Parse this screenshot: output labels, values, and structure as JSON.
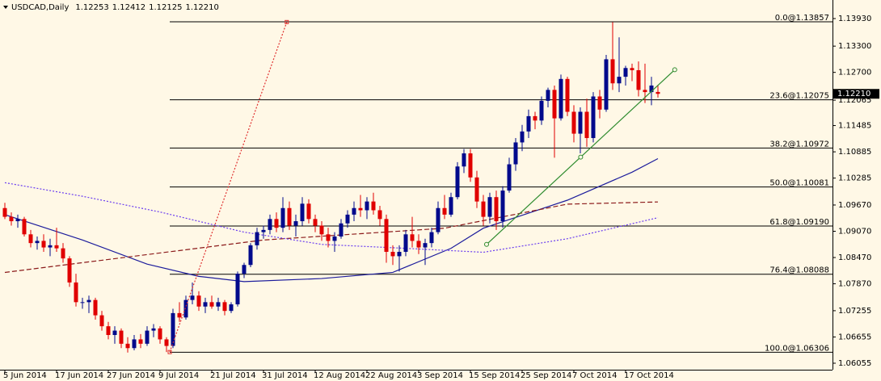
{
  "chart_data": {
    "type": "candlestick",
    "title": "USDCAD,Daily",
    "title_values": [
      {
        "value": 1.12253,
        "label": "1.12253"
      },
      {
        "value": 1.12412,
        "label": "1.12412"
      },
      {
        "value": 1.12125,
        "label": "1.12125"
      },
      {
        "value": 1.1221,
        "label": "1.12210"
      }
    ],
    "categories": [
      "5 Jun 2014",
      null,
      null,
      null,
      null,
      null,
      null,
      null,
      "17 Jun 2014",
      null,
      null,
      null,
      null,
      null,
      null,
      null,
      "27 Jun 2014",
      null,
      null,
      null,
      null,
      null,
      null,
      null,
      "9 Jul 2014",
      null,
      null,
      null,
      null,
      null,
      null,
      null,
      "21 Jul 2014",
      null,
      null,
      null,
      null,
      null,
      null,
      null,
      "31 Jul 2014",
      null,
      null,
      null,
      null,
      null,
      null,
      null,
      "12 Aug 2014",
      null,
      null,
      null,
      null,
      null,
      null,
      null,
      "22 Aug 2014",
      null,
      null,
      null,
      null,
      null,
      null,
      null,
      "3 Sep 2014",
      null,
      null,
      null,
      null,
      null,
      null,
      null,
      "15 Sep 2014",
      null,
      null,
      null,
      null,
      null,
      null,
      null,
      "25 Sep 2014",
      null,
      null,
      null,
      null,
      null,
      null,
      null,
      "7 Oct 2014",
      null,
      null,
      null,
      null,
      null,
      null,
      null,
      "17 Oct 2014",
      null,
      null,
      null,
      null,
      null
    ],
    "open": [
      1.096,
      1.094,
      1.093,
      1.0935,
      1.09,
      1.088,
      1.0885,
      1.087,
      1.0875,
      1.0868,
      1.0845,
      1.079,
      1.0745,
      1.0745,
      1.075,
      1.0715,
      1.069,
      1.067,
      1.068,
      1.065,
      1.064,
      1.066,
      1.065,
      1.068,
      1.0685,
      1.066,
      1.0645,
      1.072,
      1.071,
      1.075,
      1.076,
      1.0735,
      1.0745,
      1.0735,
      1.0745,
      1.0725,
      1.074,
      1.081,
      1.083,
      1.0875,
      1.0905,
      1.091,
      1.0935,
      1.0915,
      1.096,
      1.092,
      1.093,
      1.097,
      1.0935,
      1.092,
      1.09,
      1.0885,
      1.0895,
      1.0925,
      1.0945,
      1.096,
      1.0955,
      1.0975,
      1.0955,
      1.0935,
      1.086,
      1.085,
      1.086,
      1.09,
      1.0885,
      1.087,
      1.088,
      1.0905,
      1.096,
      1.0945,
      1.0985,
      1.1055,
      1.1085,
      1.103,
      1.0975,
      1.094,
      1.0985,
      1.093,
      1.1,
      1.106,
      1.111,
      1.1135,
      1.117,
      1.116,
      1.1205,
      1.123,
      1.1165,
      1.1255,
      1.118,
      1.113,
      1.118,
      1.112,
      1.1215,
      1.1185,
      1.13,
      1.1245,
      1.126,
      1.128,
      1.1275,
      1.123,
      1.1225,
      1.12253
    ],
    "high": [
      1.0972,
      1.095,
      1.0945,
      1.094,
      1.091,
      1.0895,
      1.09,
      1.089,
      1.0915,
      1.088,
      1.085,
      1.081,
      1.0755,
      1.076,
      1.0755,
      1.0725,
      1.07,
      1.069,
      1.0685,
      1.0665,
      1.067,
      1.0672,
      1.069,
      1.0695,
      1.069,
      1.0665,
      1.073,
      1.0745,
      1.076,
      1.079,
      1.077,
      1.0755,
      1.076,
      1.0755,
      1.075,
      1.0745,
      1.0815,
      1.0835,
      1.088,
      1.0915,
      1.092,
      1.0945,
      1.095,
      1.0985,
      1.0975,
      1.0945,
      1.0985,
      1.098,
      1.0945,
      1.093,
      1.0915,
      1.0905,
      1.0935,
      1.0955,
      1.0975,
      1.099,
      1.0985,
      1.0995,
      1.0965,
      1.0945,
      1.0875,
      1.0875,
      1.091,
      1.094,
      1.09,
      1.089,
      1.0915,
      1.0975,
      1.099,
      1.0995,
      1.1065,
      1.1095,
      1.1095,
      1.1045,
      1.099,
      1.0995,
      1.1,
      1.101,
      1.1075,
      1.112,
      1.115,
      1.1185,
      1.118,
      1.1215,
      1.1235,
      1.124,
      1.1265,
      1.126,
      1.1195,
      1.119,
      1.121,
      1.1225,
      1.123,
      1.131,
      1.1385,
      1.135,
      1.1285,
      1.129,
      1.1295,
      1.129,
      1.126,
      1.12412
    ],
    "low": [
      1.0935,
      1.092,
      1.0915,
      1.0895,
      1.087,
      1.0865,
      1.086,
      1.085,
      1.086,
      1.0835,
      1.078,
      1.0735,
      1.073,
      1.072,
      1.0705,
      1.068,
      1.066,
      1.065,
      1.064,
      1.063,
      1.0635,
      1.064,
      1.0645,
      1.0665,
      1.065,
      1.0631,
      1.064,
      1.07,
      1.0705,
      1.074,
      1.0725,
      1.072,
      1.073,
      1.0725,
      1.0715,
      1.072,
      1.0735,
      1.08,
      1.0825,
      1.0865,
      1.089,
      1.09,
      1.0905,
      1.0905,
      1.091,
      1.0895,
      1.092,
      1.0925,
      1.0905,
      1.0885,
      1.087,
      1.086,
      1.089,
      1.0915,
      1.093,
      1.094,
      1.0935,
      1.0945,
      1.092,
      1.0835,
      1.083,
      1.0815,
      1.085,
      1.087,
      1.0855,
      1.083,
      1.087,
      1.09,
      1.0935,
      1.094,
      1.098,
      1.104,
      1.102,
      1.096,
      1.092,
      1.0925,
      1.091,
      1.0915,
      1.0995,
      1.1045,
      1.109,
      1.112,
      1.114,
      1.115,
      1.119,
      1.1075,
      1.116,
      1.117,
      1.111,
      1.1085,
      1.11,
      1.111,
      1.1165,
      1.118,
      1.123,
      1.1225,
      1.124,
      1.125,
      1.1215,
      1.12,
      1.1195,
      1.12125
    ],
    "close": [
      1.094,
      1.093,
      1.0935,
      1.09,
      1.088,
      1.0885,
      1.087,
      1.0875,
      1.0868,
      1.0845,
      1.079,
      1.0745,
      1.0745,
      1.075,
      1.0715,
      1.069,
      1.067,
      1.068,
      1.065,
      1.064,
      1.066,
      1.065,
      1.068,
      1.0685,
      1.066,
      1.0645,
      1.072,
      1.071,
      1.075,
      1.076,
      1.0735,
      1.0745,
      1.0735,
      1.0745,
      1.0725,
      1.074,
      1.081,
      1.083,
      1.0875,
      1.0905,
      1.091,
      1.0935,
      1.0915,
      1.096,
      1.092,
      1.093,
      1.097,
      1.0935,
      1.092,
      1.09,
      1.0885,
      1.0895,
      1.0925,
      1.0945,
      1.096,
      1.0955,
      1.0975,
      1.0955,
      1.0935,
      1.086,
      1.085,
      1.086,
      1.09,
      1.0885,
      1.087,
      1.088,
      1.0905,
      1.096,
      1.0945,
      1.0985,
      1.1055,
      1.1085,
      1.103,
      1.0975,
      1.094,
      1.0985,
      1.093,
      1.1,
      1.106,
      1.111,
      1.1135,
      1.117,
      1.116,
      1.1205,
      1.123,
      1.1165,
      1.1255,
      1.118,
      1.113,
      1.118,
      1.112,
      1.1215,
      1.1185,
      1.13,
      1.1245,
      1.126,
      1.128,
      1.1275,
      1.123,
      1.1225,
      1.124,
      1.1221
    ],
    "up_color": "#000a8c",
    "down_color": "#e00000",
    "xlim": [
      -0.75,
      128
    ],
    "ylim": [
      1.05907,
      1.14354
    ],
    "yticks": [
      {
        "value": 1.1393,
        "label": "1.13930"
      },
      {
        "value": 1.133,
        "label": "1.13300"
      },
      {
        "value": 1.127,
        "label": "1.12700"
      },
      1.12065,
      1.11485,
      1.10885,
      1.10285,
      {
        "value": 1.0967,
        "label": "1.09670"
      },
      {
        "value": 1.0907,
        "label": "1.09070"
      },
      {
        "value": 1.0847,
        "label": "1.08470"
      },
      {
        "value": 1.0787,
        "label": "1.07870"
      },
      1.07255,
      1.06655,
      1.06055
    ],
    "last_price": {
      "value": 1.1221,
      "label": "1.12210"
    },
    "indicators": [
      {
        "color": "#1c1c9c",
        "dash": "solid",
        "x": [
          0,
          12,
          22,
          30,
          37,
          49,
          60,
          69,
          74,
          87,
          97,
          101
        ],
        "values": [
          1.0945,
          1.0887,
          1.0832,
          1.0804,
          1.0792,
          1.0799,
          1.0813,
          1.0868,
          1.0914,
          1.0978,
          1.1042,
          1.1073
        ]
      },
      {
        "color": "#8b1a1a",
        "dash": "dashed",
        "x": [
          0,
          40,
          68,
          87,
          101
        ],
        "values": [
          1.0813,
          1.0887,
          1.0914,
          1.0969,
          1.0974
        ]
      },
      {
        "color": "#6a3df0",
        "dash": "dotted",
        "x": [
          0,
          12,
          24,
          37,
          49,
          62,
          74,
          87,
          101
        ],
        "values": [
          1.1018,
          1.0987,
          1.0951,
          1.0905,
          1.0877,
          1.0868,
          1.0859,
          1.089,
          1.0938
        ]
      }
    ],
    "trendline": {
      "color": "#2e8b2e",
      "x": [
        74.5,
        103.6
      ],
      "values": [
        1.0877,
        1.1276
      ]
    },
    "ray": {
      "color": "#e03030",
      "x": [
        25.5,
        43.6
      ],
      "values": [
        1.0631,
        1.1385
      ]
    },
    "fibonacci": {
      "x_start": 25.5,
      "levels": [
        {
          "value": 1.13857,
          "label": "0.0@1.13857"
        },
        {
          "value": 1.12075,
          "label": "23.6@1.12075"
        },
        {
          "value": 1.10972,
          "label": "38.2@1.10972"
        },
        {
          "value": 1.10081,
          "label": "50.0@1.10081"
        },
        {
          "value": 1.0919,
          "label": "61.8@1.09190"
        },
        {
          "value": 1.08088,
          "label": "76.4@1.08088"
        },
        {
          "value": 1.06306,
          "label": "100.0@1.06306"
        }
      ]
    }
  }
}
